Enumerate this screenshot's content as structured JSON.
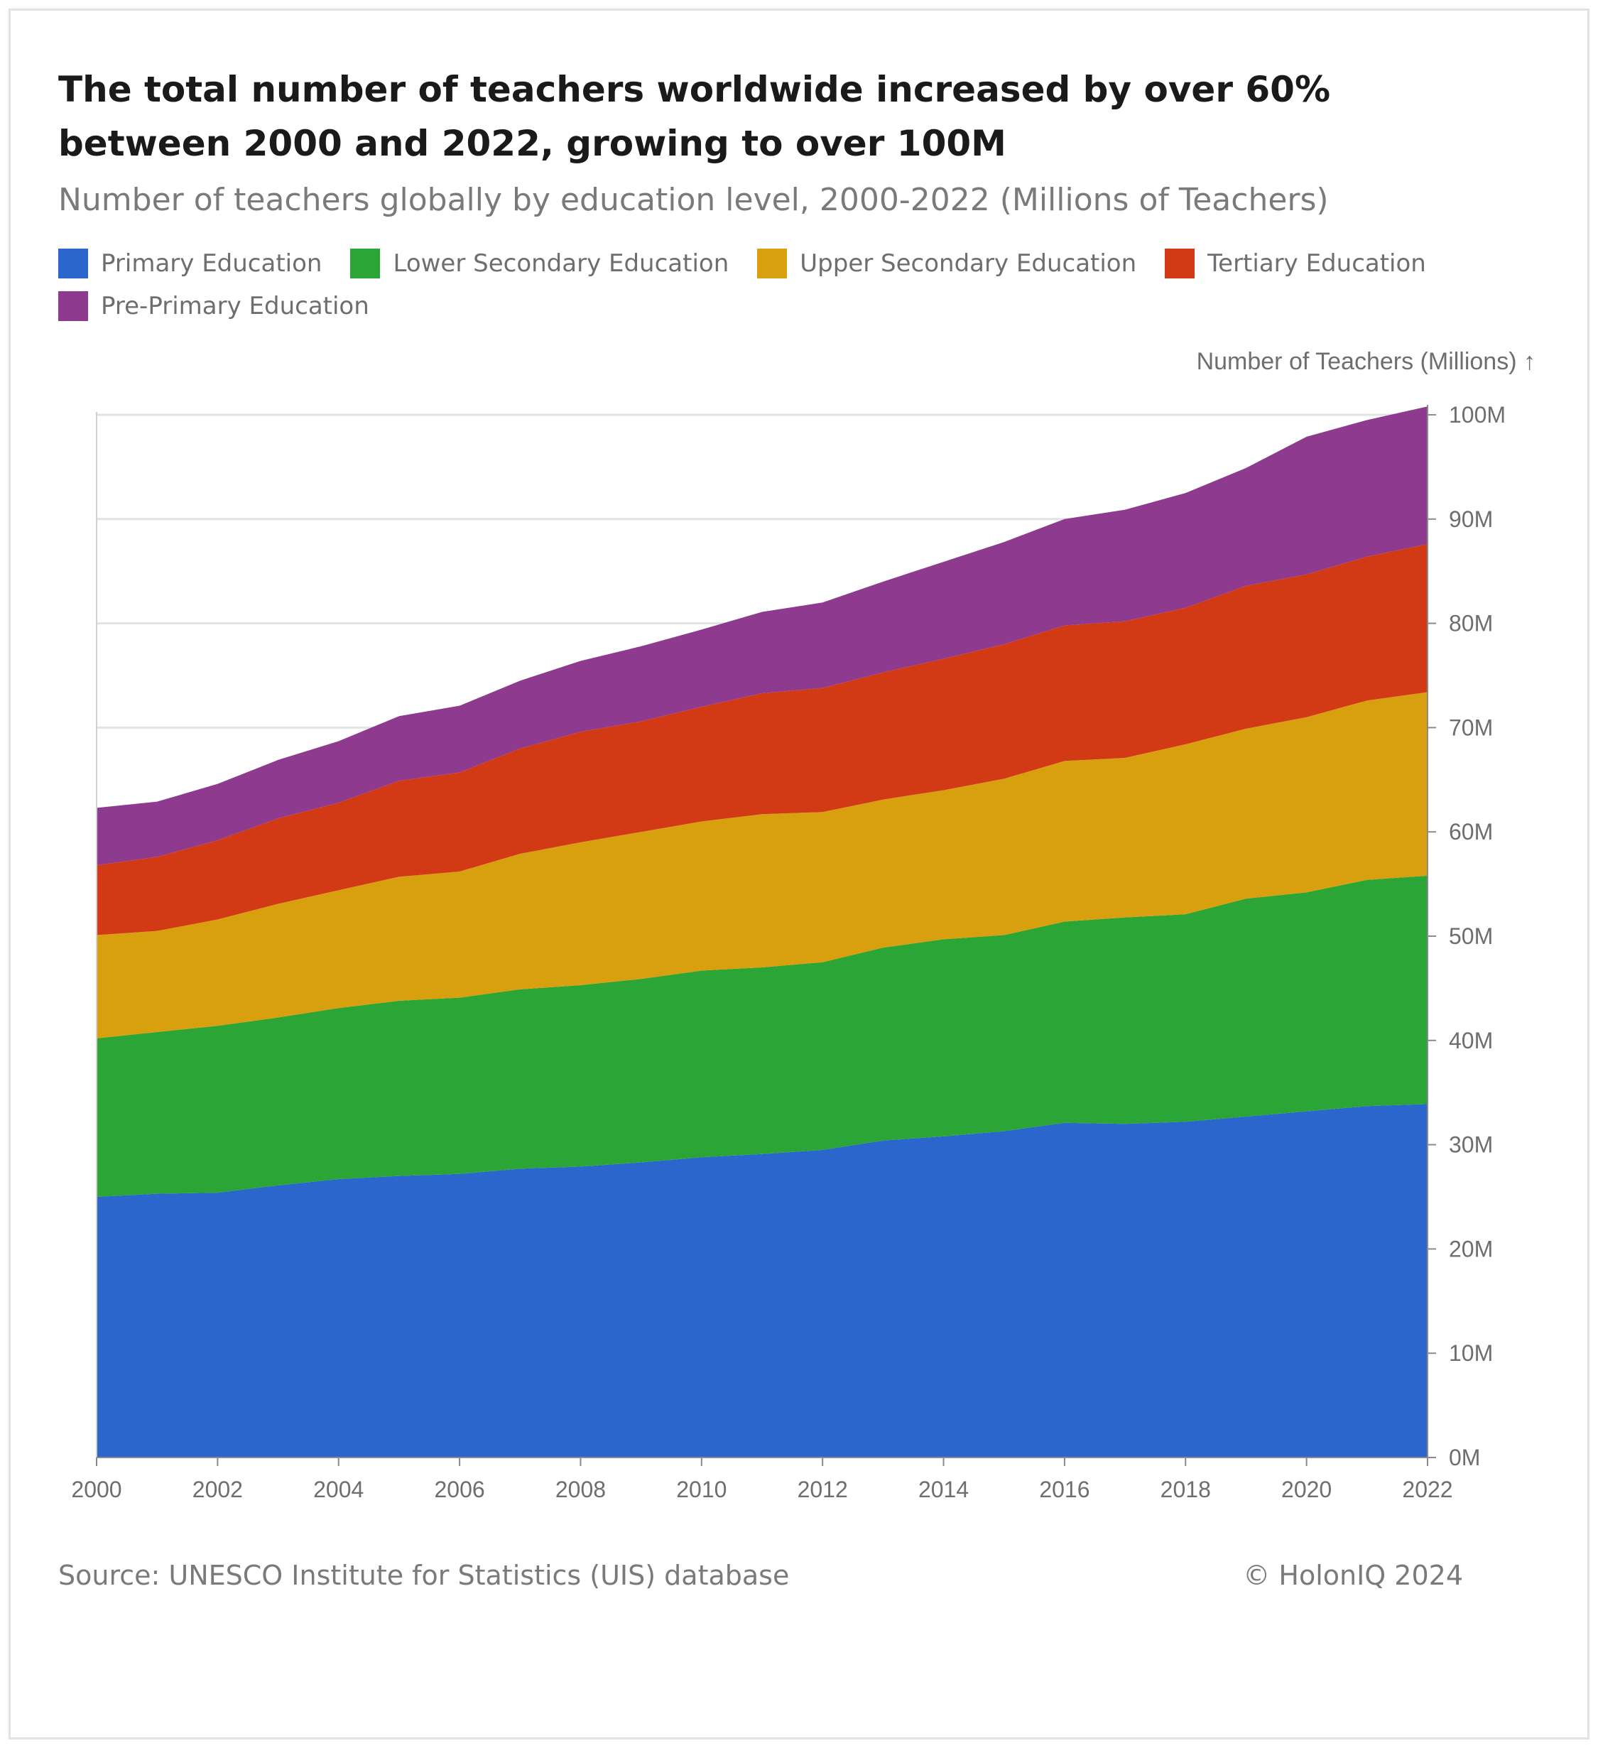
{
  "header": {
    "title": "The total number of teachers worldwide increased by over 60% between 2000 and 2022, growing to over 100M",
    "subtitle": "Number of teachers globally by education level, 2000-2022 (Millions of Teachers)"
  },
  "legend": [
    {
      "label": "Primary Education",
      "color": "#2a66cc"
    },
    {
      "label": "Lower Secondary Education",
      "color": "#2ba535"
    },
    {
      "label": "Upper Secondary Education",
      "color": "#d89f0e"
    },
    {
      "label": "Tertiary Education",
      "color": "#d13a14"
    },
    {
      "label": "Pre-Primary Education",
      "color": "#8e3a8e"
    }
  ],
  "footer": {
    "source": "Source: UNESCO Institute for Statistics (UIS) database",
    "copyright": "© HolonIQ 2024"
  },
  "chart_data": {
    "type": "area",
    "stacked": true,
    "x": [
      2000,
      2001,
      2002,
      2003,
      2004,
      2005,
      2006,
      2007,
      2008,
      2009,
      2010,
      2011,
      2012,
      2013,
      2014,
      2015,
      2016,
      2017,
      2018,
      2019,
      2020,
      2021,
      2022
    ],
    "series": [
      {
        "name": "Primary Education",
        "color": "#2a66cc",
        "values": [
          25.0,
          25.3,
          25.4,
          26.1,
          26.7,
          27.0,
          27.2,
          27.7,
          27.9,
          28.3,
          28.8,
          29.1,
          29.5,
          30.4,
          30.8,
          31.3,
          32.1,
          32.0,
          32.2,
          32.7,
          33.2,
          33.7,
          33.9
        ]
      },
      {
        "name": "Lower Secondary Education",
        "color": "#2ba535",
        "values": [
          15.2,
          15.5,
          16.0,
          16.1,
          16.4,
          16.8,
          16.9,
          17.2,
          17.4,
          17.6,
          17.9,
          17.9,
          18.0,
          18.5,
          18.9,
          18.8,
          19.3,
          19.8,
          19.9,
          20.9,
          21.0,
          21.7,
          21.9
        ]
      },
      {
        "name": "Upper Secondary Education",
        "color": "#d89f0e",
        "values": [
          9.9,
          9.7,
          10.2,
          10.9,
          11.3,
          11.9,
          12.1,
          13.0,
          13.7,
          14.1,
          14.3,
          14.7,
          14.4,
          14.2,
          14.3,
          15.0,
          15.4,
          15.3,
          16.3,
          16.3,
          16.8,
          17.2,
          17.6
        ]
      },
      {
        "name": "Tertiary Education",
        "color": "#d13a14",
        "values": [
          6.7,
          7.1,
          7.6,
          8.2,
          8.4,
          9.2,
          9.5,
          10.1,
          10.6,
          10.6,
          11.0,
          11.6,
          11.9,
          12.2,
          12.6,
          12.9,
          13.0,
          13.1,
          13.1,
          13.7,
          13.7,
          13.8,
          14.2
        ]
      },
      {
        "name": "Pre-Primary Education",
        "color": "#8e3a8e",
        "values": [
          5.5,
          5.3,
          5.4,
          5.6,
          5.9,
          6.2,
          6.4,
          6.5,
          6.8,
          7.2,
          7.4,
          7.8,
          8.2,
          8.7,
          9.3,
          9.8,
          10.2,
          10.7,
          11.0,
          11.3,
          13.2,
          13.1,
          13.2
        ]
      }
    ],
    "yaxis_title": "Number of Teachers (Millions) ↑",
    "xtick_labels": [
      "2000",
      "2002",
      "2004",
      "2006",
      "2008",
      "2010",
      "2012",
      "2014",
      "2016",
      "2018",
      "2020",
      "2022"
    ],
    "ytick_labels": [
      "0M",
      "10M",
      "20M",
      "30M",
      "40M",
      "50M",
      "60M",
      "70M",
      "80M",
      "90M",
      "100M"
    ],
    "ylim": [
      0,
      100
    ],
    "xlim": [
      2000,
      2022
    ],
    "grid": "horizontal",
    "yaxis_side": "right",
    "legend_position": "top-left"
  }
}
